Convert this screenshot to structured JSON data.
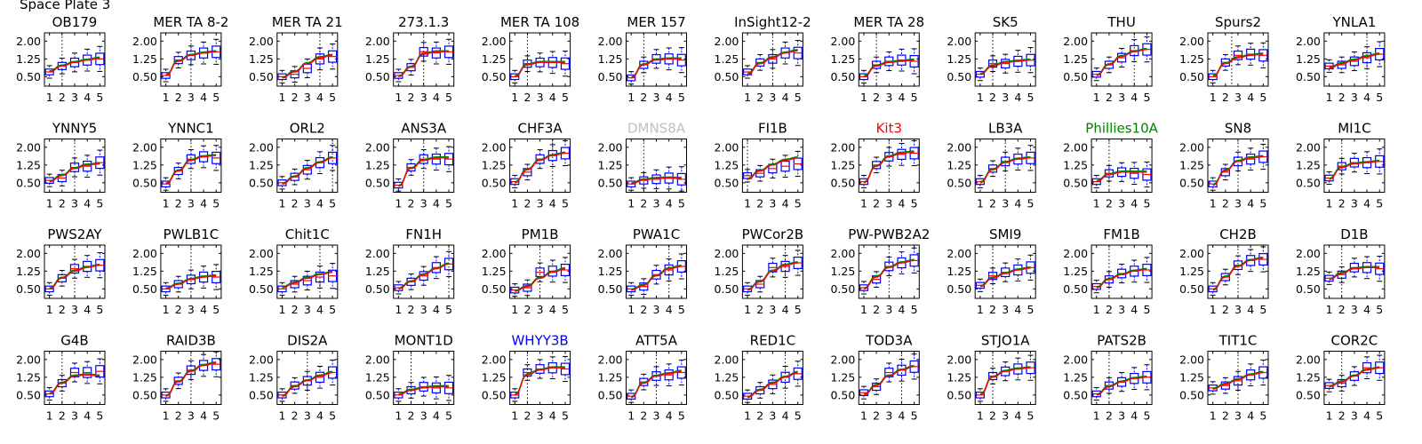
{
  "page": {
    "title": "Space Plate 3"
  },
  "colors": {
    "box": "#0000ff",
    "curve_red": "#ff0000",
    "curve_green": "#008000",
    "frame": "#000000",
    "default_title": "#000000"
  },
  "chart_data": {
    "type": "box",
    "x": [
      1,
      2,
      3,
      4,
      5
    ],
    "xticks": [
      "1",
      "2",
      "3",
      "4",
      "5"
    ],
    "yticks": [
      "0.50",
      "1.25",
      "2.00"
    ],
    "ylim": [
      0.1,
      2.35
    ],
    "xlim": [
      0.6,
      5.4
    ],
    "grid": false,
    "panels": [
      {
        "name": "OB179",
        "title_color": "#000000",
        "vline": 2.0,
        "medians": [
          0.7,
          0.95,
          1.1,
          1.2,
          1.25
        ],
        "curve": [
          0.7,
          0.95,
          1.1,
          1.2,
          1.28
        ]
      },
      {
        "name": "MER TA 8-2",
        "title_color": "#000000",
        "vline": 3.0,
        "medians": [
          0.55,
          1.2,
          1.4,
          1.5,
          1.55
        ],
        "curve": [
          0.55,
          1.15,
          1.4,
          1.5,
          1.55
        ]
      },
      {
        "name": "MER TA 21",
        "title_color": "#000000",
        "vline": 4.0,
        "medians": [
          0.5,
          0.6,
          0.85,
          1.25,
          1.35
        ],
        "curve": [
          0.45,
          0.7,
          1.05,
          1.3,
          1.4
        ]
      },
      {
        "name": "273.1.3",
        "title_color": "#000000",
        "vline": 3.0,
        "medians": [
          0.55,
          0.9,
          1.55,
          1.5,
          1.55
        ],
        "curve": [
          0.5,
          0.9,
          1.45,
          1.55,
          1.55
        ]
      },
      {
        "name": "MER TA 108",
        "title_color": "#000000",
        "vline": 2.0,
        "medians": [
          0.5,
          1.05,
          1.1,
          1.1,
          1.05
        ],
        "curve": [
          0.5,
          1.0,
          1.1,
          1.1,
          1.1
        ]
      },
      {
        "name": "MER 157",
        "title_color": "#000000",
        "vline": 2.0,
        "medians": [
          0.45,
          1.0,
          1.25,
          1.25,
          1.2
        ],
        "curve": [
          0.45,
          1.0,
          1.2,
          1.25,
          1.25
        ]
      },
      {
        "name": "InSight12-2",
        "title_color": "#000000",
        "vline": 3.0,
        "medians": [
          0.7,
          1.1,
          1.25,
          1.5,
          1.5
        ],
        "curve": [
          0.6,
          1.05,
          1.3,
          1.5,
          1.6
        ]
      },
      {
        "name": "MER TA 28",
        "title_color": "#000000",
        "vline": 2.0,
        "medians": [
          0.5,
          1.0,
          1.15,
          1.2,
          1.15
        ],
        "curve": [
          0.5,
          0.95,
          1.1,
          1.15,
          1.2
        ]
      },
      {
        "name": "SK5",
        "title_color": "#000000",
        "vline": 2.0,
        "medians": [
          0.6,
          1.05,
          1.05,
          1.15,
          1.2
        ],
        "curve": [
          0.6,
          0.95,
          1.1,
          1.15,
          1.2
        ]
      },
      {
        "name": "THU",
        "title_color": "#000000",
        "vline": 4.0,
        "medians": [
          0.6,
          1.0,
          1.3,
          1.6,
          1.65
        ],
        "curve": [
          0.55,
          1.0,
          1.35,
          1.55,
          1.65
        ]
      },
      {
        "name": "Spurs2",
        "title_color": "#000000",
        "vline": 2.5,
        "medians": [
          0.5,
          1.1,
          1.4,
          1.45,
          1.4
        ],
        "curve": [
          0.5,
          1.05,
          1.3,
          1.4,
          1.45
        ]
      },
      {
        "name": "YNLA1",
        "title_color": "#000000",
        "vline": 4.0,
        "medians": [
          0.95,
          1.0,
          1.15,
          1.3,
          1.45
        ],
        "curve": [
          0.85,
          1.05,
          1.2,
          1.35,
          1.45
        ]
      },
      {
        "name": "YNNY5",
        "title_color": "#000000",
        "vline": 3.0,
        "medians": [
          0.6,
          0.7,
          1.15,
          1.2,
          1.35
        ],
        "curve": [
          0.55,
          0.8,
          1.1,
          1.25,
          1.3
        ]
      },
      {
        "name": "YNNC1",
        "title_color": "#000000",
        "vline": 3.0,
        "medians": [
          0.45,
          1.0,
          1.5,
          1.6,
          1.55
        ],
        "curve": [
          0.45,
          1.0,
          1.45,
          1.6,
          1.65
        ]
      },
      {
        "name": "ORL2",
        "title_color": "#000000",
        "vline": 5.0,
        "medians": [
          0.5,
          0.75,
          1.05,
          1.35,
          1.55
        ],
        "curve": [
          0.45,
          0.75,
          1.1,
          1.35,
          1.55
        ]
      },
      {
        "name": "ANS3A",
        "title_color": "#000000",
        "vline": 3.0,
        "medians": [
          0.4,
          1.15,
          1.5,
          1.5,
          1.5
        ],
        "curve": [
          0.35,
          1.1,
          1.45,
          1.55,
          1.55
        ]
      },
      {
        "name": "CHF3A",
        "title_color": "#000000",
        "vline": 4.0,
        "medians": [
          0.55,
          0.95,
          1.5,
          1.65,
          1.75
        ],
        "curve": [
          0.5,
          1.05,
          1.45,
          1.65,
          1.75
        ]
      },
      {
        "name": "DMNS8A",
        "title_color": "#c0c0c0",
        "vline": 2.0,
        "medians": [
          0.45,
          0.6,
          0.65,
          0.7,
          0.65
        ],
        "curve": [
          0.45,
          0.62,
          0.68,
          0.7,
          0.68
        ]
      },
      {
        "name": "FI1B",
        "title_color": "#000000",
        "vline": 1.0,
        "medians": [
          0.8,
          0.9,
          1.1,
          1.2,
          1.3
        ],
        "curve": [
          0.65,
          1.0,
          1.25,
          1.45,
          1.55
        ]
      },
      {
        "name": "Kit3",
        "title_color": "#ff0000",
        "vline": 3.0,
        "medians": [
          0.55,
          1.25,
          1.6,
          1.7,
          1.75
        ],
        "curve": [
          0.5,
          1.2,
          1.6,
          1.75,
          1.8
        ]
      },
      {
        "name": "LB3A",
        "title_color": "#000000",
        "vline": 3.0,
        "medians": [
          0.55,
          1.1,
          1.4,
          1.5,
          1.55
        ],
        "curve": [
          0.5,
          1.05,
          1.35,
          1.5,
          1.55
        ]
      },
      {
        "name": "Phillies10A",
        "title_color": "#008000",
        "vline": 2.0,
        "medians": [
          0.55,
          0.9,
          0.95,
          0.9,
          0.85
        ],
        "curve": [
          0.55,
          0.85,
          0.95,
          0.95,
          0.95
        ]
      },
      {
        "name": "SN8",
        "title_color": "#000000",
        "vline": 3.0,
        "medians": [
          0.45,
          0.95,
          1.4,
          1.5,
          1.6
        ],
        "curve": [
          0.4,
          1.0,
          1.4,
          1.55,
          1.6
        ]
      },
      {
        "name": "MI1C",
        "title_color": "#000000",
        "vline": 2.0,
        "medians": [
          0.7,
          1.2,
          1.35,
          1.35,
          1.4
        ],
        "curve": [
          0.65,
          1.15,
          1.3,
          1.35,
          1.4
        ]
      },
      {
        "name": "PWS2AY",
        "title_color": "#000000",
        "vline": 3.0,
        "medians": [
          0.5,
          0.95,
          1.35,
          1.45,
          1.5
        ],
        "curve": [
          0.5,
          0.95,
          1.25,
          1.4,
          1.5
        ]
      },
      {
        "name": "PWLB1C",
        "title_color": "#000000",
        "vline": 3.0,
        "medians": [
          0.5,
          0.7,
          0.9,
          1.0,
          1.0
        ],
        "curve": [
          0.5,
          0.7,
          0.9,
          1.0,
          1.05
        ]
      },
      {
        "name": "Chit1C",
        "title_color": "#000000",
        "vline": 4.0,
        "medians": [
          0.5,
          0.7,
          0.85,
          1.0,
          1.05
        ],
        "curve": [
          0.55,
          0.75,
          0.95,
          1.1,
          1.2
        ]
      },
      {
        "name": "FN1H",
        "title_color": "#000000",
        "vline": 5.0,
        "medians": [
          0.55,
          0.8,
          1.05,
          1.4,
          1.55
        ],
        "curve": [
          0.5,
          0.8,
          1.1,
          1.35,
          1.55
        ]
      },
      {
        "name": "PM1B",
        "title_color": "#000000",
        "vline": 3.0,
        "medians": [
          0.45,
          0.55,
          1.2,
          1.25,
          1.3
        ],
        "curve": [
          0.4,
          0.6,
          0.95,
          1.2,
          1.35
        ]
      },
      {
        "name": "PWA1C",
        "title_color": "#000000",
        "vline": 4.0,
        "medians": [
          0.5,
          0.6,
          1.1,
          1.3,
          1.45
        ],
        "curve": [
          0.45,
          0.65,
          1.05,
          1.35,
          1.45
        ]
      },
      {
        "name": "PWCor2B",
        "title_color": "#000000",
        "vline": 4.0,
        "medians": [
          0.5,
          0.7,
          1.4,
          1.45,
          1.6
        ],
        "curve": [
          0.45,
          0.8,
          1.25,
          1.5,
          1.6
        ]
      },
      {
        "name": "PW-PWB2A2",
        "title_color": "#000000",
        "vline": 3.0,
        "medians": [
          0.55,
          0.9,
          1.45,
          1.6,
          1.7
        ],
        "curve": [
          0.5,
          1.0,
          1.4,
          1.6,
          1.7
        ]
      },
      {
        "name": "SMI9",
        "title_color": "#000000",
        "vline": 2.0,
        "medians": [
          0.65,
          1.05,
          1.2,
          1.3,
          1.4
        ],
        "curve": [
          0.6,
          0.95,
          1.15,
          1.3,
          1.38
        ]
      },
      {
        "name": "FM1B",
        "title_color": "#000000",
        "vline": 2.0,
        "medians": [
          0.6,
          0.9,
          1.15,
          1.25,
          1.3
        ],
        "curve": [
          0.55,
          0.9,
          1.1,
          1.25,
          1.32
        ]
      },
      {
        "name": "CH2B",
        "title_color": "#000000",
        "vline": 3.0,
        "medians": [
          0.5,
          1.0,
          1.5,
          1.7,
          1.75
        ],
        "curve": [
          0.45,
          1.0,
          1.45,
          1.7,
          1.8
        ]
      },
      {
        "name": "D1B",
        "title_color": "#000000",
        "vline": 2.0,
        "medians": [
          0.95,
          1.1,
          1.4,
          1.4,
          1.35
        ],
        "curve": [
          0.9,
          1.15,
          1.35,
          1.4,
          1.4
        ]
      },
      {
        "name": "G4B",
        "title_color": "#000000",
        "vline": 2.0,
        "medians": [
          0.55,
          1.0,
          1.45,
          1.45,
          1.5
        ],
        "curve": [
          0.55,
          1.0,
          1.3,
          1.35,
          1.3
        ]
      },
      {
        "name": "RAID3B",
        "title_color": "#000000",
        "vline": 3.0,
        "medians": [
          0.5,
          1.1,
          1.55,
          1.75,
          1.8
        ],
        "curve": [
          0.45,
          1.05,
          1.5,
          1.75,
          1.85
        ]
      },
      {
        "name": "DIS2A",
        "title_color": "#000000",
        "vline": 3.0,
        "medians": [
          0.5,
          0.9,
          1.1,
          1.25,
          1.45
        ],
        "curve": [
          0.45,
          0.85,
          1.1,
          1.3,
          1.45
        ]
      },
      {
        "name": "MONT1D",
        "title_color": "#000000",
        "vline": 2.0,
        "medians": [
          0.5,
          0.7,
          0.85,
          0.8,
          0.8
        ],
        "curve": [
          0.5,
          0.7,
          0.8,
          0.85,
          0.85
        ]
      },
      {
        "name": "WHYY3B",
        "title_color": "#0000ff",
        "vline": 2.0,
        "medians": [
          0.5,
          1.45,
          1.6,
          1.65,
          1.6
        ],
        "curve": [
          0.5,
          1.35,
          1.55,
          1.65,
          1.65
        ]
      },
      {
        "name": "ATT5A",
        "title_color": "#000000",
        "vline": 3.0,
        "medians": [
          0.45,
          1.05,
          1.3,
          1.35,
          1.45
        ],
        "curve": [
          0.4,
          1.0,
          1.3,
          1.4,
          1.5
        ]
      },
      {
        "name": "RED1C",
        "title_color": "#000000",
        "vline": 4.0,
        "medians": [
          0.45,
          0.7,
          0.95,
          1.25,
          1.4
        ],
        "curve": [
          0.4,
          0.7,
          1.0,
          1.25,
          1.45
        ]
      },
      {
        "name": "TOD3A",
        "title_color": "#000000",
        "vline": 4.0,
        "medians": [
          0.6,
          0.85,
          1.45,
          1.55,
          1.7
        ],
        "curve": [
          0.5,
          0.9,
          1.3,
          1.55,
          1.7
        ]
      },
      {
        "name": "STJO1A",
        "title_color": "#000000",
        "vline": 2.0,
        "medians": [
          0.5,
          1.3,
          1.5,
          1.6,
          1.65
        ],
        "curve": [
          0.5,
          1.25,
          1.5,
          1.6,
          1.65
        ]
      },
      {
        "name": "PATS2B",
        "title_color": "#000000",
        "vline": 2.0,
        "medians": [
          0.55,
          0.9,
          1.05,
          1.2,
          1.25
        ],
        "curve": [
          0.5,
          0.85,
          1.05,
          1.2,
          1.25
        ]
      },
      {
        "name": "TIT1C",
        "title_color": "#000000",
        "vline": 3.0,
        "medians": [
          0.8,
          0.9,
          1.1,
          1.35,
          1.45
        ],
        "curve": [
          0.75,
          0.95,
          1.15,
          1.35,
          1.45
        ]
      },
      {
        "name": "COR2C",
        "title_color": "#000000",
        "vline": 2.0,
        "medians": [
          0.9,
          1.0,
          1.3,
          1.65,
          1.65
        ],
        "curve": [
          0.85,
          1.05,
          1.3,
          1.55,
          1.65
        ]
      }
    ]
  }
}
